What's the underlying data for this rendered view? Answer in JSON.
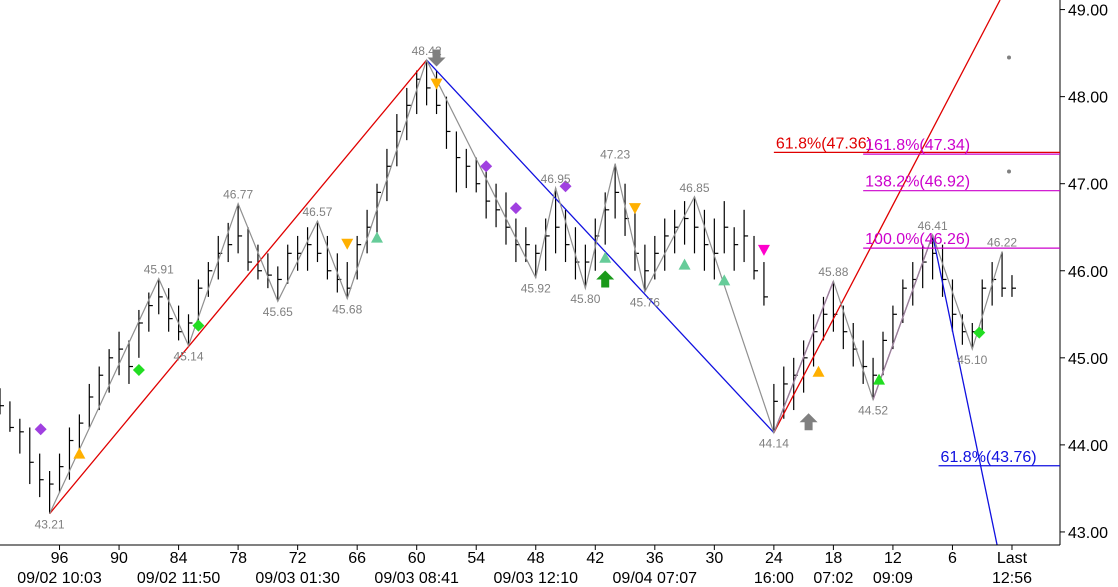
{
  "chart_data": {
    "type": "ohlc",
    "xlim": [
      102,
      -4.84
    ],
    "ylim": [
      42.85,
      49.11
    ],
    "xticks": [
      96,
      90,
      84,
      78,
      72,
      66,
      60,
      54,
      48,
      42,
      36,
      30,
      24,
      18,
      12,
      6,
      {
        "value": 0,
        "label": "Last"
      }
    ],
    "xticks2": [
      {
        "value": 96,
        "label": "09/02 10:03"
      },
      {
        "value": 84,
        "label": "09/02 11:50"
      },
      {
        "value": 72,
        "label": "09/03 01:30"
      },
      {
        "value": 60,
        "label": "09/03 08:41"
      },
      {
        "value": 48,
        "label": "09/03 12:10"
      },
      {
        "value": 36,
        "label": "09/04 07:07"
      },
      {
        "value": 24,
        "label": "16:00"
      },
      {
        "value": 18,
        "label": "07:02"
      },
      {
        "value": 12,
        "label": "09:09"
      },
      {
        "value": 0,
        "label": "12:56"
      }
    ],
    "yticks": [
      {
        "value": 43,
        "label": "43.00"
      },
      {
        "value": 44,
        "label": "44.00"
      },
      {
        "value": 45,
        "label": "45.00"
      },
      {
        "value": 46,
        "label": "46.00"
      },
      {
        "value": 47,
        "label": "47.00"
      },
      {
        "value": 48,
        "label": "48.00"
      },
      {
        "value": 49,
        "label": "49.00"
      }
    ],
    "bars": {
      "color": "#000000",
      "x": [
        102,
        101,
        100,
        99,
        98,
        97,
        96,
        95,
        94,
        93,
        92,
        91,
        90,
        89,
        88,
        87,
        86,
        85,
        84,
        83,
        82,
        81,
        80,
        79,
        78,
        77,
        76,
        75,
        74,
        73,
        72,
        71,
        70,
        69,
        68,
        67,
        66,
        65,
        64,
        63,
        62,
        61,
        60,
        59,
        58,
        57,
        56,
        55,
        54,
        53,
        52,
        51,
        50,
        49,
        48,
        47,
        46,
        45,
        44,
        43,
        42,
        41,
        40,
        39,
        38,
        37,
        36,
        35,
        34,
        33,
        32,
        31,
        30,
        29,
        28,
        27,
        26,
        25,
        24,
        23,
        22,
        21,
        20,
        19,
        18,
        17,
        16,
        15,
        14,
        13,
        12,
        11,
        10,
        9,
        8,
        7,
        6,
        5,
        4,
        3,
        2,
        1,
        0
      ],
      "high": [
        44.65,
        44.5,
        44.3,
        44.2,
        43.9,
        43.7,
        43.9,
        44.2,
        44.35,
        44.7,
        44.9,
        45.1,
        45.3,
        45.2,
        45.55,
        45.75,
        45.91,
        45.8,
        45.6,
        45.5,
        45.9,
        46.1,
        46.4,
        46.55,
        46.77,
        46.5,
        46.3,
        46.2,
        46.05,
        46.3,
        46.4,
        46.5,
        46.57,
        46.4,
        46.2,
        46.1,
        46.4,
        46.7,
        47.0,
        47.4,
        47.8,
        48.1,
        48.3,
        48.42,
        48.3,
        48.0,
        47.6,
        47.4,
        47.3,
        47.2,
        47.0,
        46.9,
        46.6,
        46.5,
        46.3,
        46.6,
        46.95,
        46.7,
        46.5,
        46.3,
        46.6,
        46.9,
        47.23,
        47.0,
        46.7,
        46.3,
        46.4,
        46.6,
        46.7,
        46.8,
        46.85,
        46.7,
        46.6,
        46.8,
        46.5,
        46.7,
        46.4,
        46.1,
        44.7,
        44.9,
        45.0,
        45.2,
        45.5,
        45.7,
        45.88,
        45.6,
        45.4,
        45.2,
        45.0,
        45.3,
        45.6,
        45.9,
        46.1,
        46.3,
        46.41,
        46.3,
        45.9,
        45.5,
        45.4,
        45.9,
        46.1,
        46.22,
        45.95
      ],
      "low": [
        44.35,
        44.15,
        43.9,
        43.55,
        43.4,
        43.21,
        43.45,
        43.6,
        43.9,
        44.2,
        44.4,
        44.6,
        44.8,
        44.7,
        45.0,
        45.3,
        45.5,
        45.3,
        45.2,
        45.14,
        45.4,
        45.7,
        45.9,
        46.1,
        46.2,
        46.0,
        45.9,
        45.8,
        45.65,
        45.85,
        46.0,
        46.0,
        46.1,
        45.9,
        45.75,
        45.68,
        45.9,
        46.2,
        46.4,
        46.8,
        47.2,
        47.5,
        47.8,
        47.9,
        47.8,
        47.4,
        46.9,
        46.95,
        46.9,
        46.6,
        46.5,
        46.3,
        46.1,
        46.1,
        45.92,
        46.0,
        46.2,
        46.1,
        45.9,
        45.8,
        46.0,
        46.3,
        46.6,
        46.4,
        46.0,
        45.76,
        45.9,
        46.0,
        46.2,
        46.3,
        46.2,
        46.0,
        45.9,
        46.2,
        46.0,
        46.1,
        45.9,
        45.6,
        44.14,
        44.3,
        44.4,
        44.6,
        44.9,
        45.2,
        45.3,
        45.1,
        44.9,
        44.7,
        44.52,
        44.8,
        45.1,
        45.4,
        45.6,
        45.8,
        45.9,
        45.7,
        45.3,
        45.15,
        45.1,
        45.3,
        45.6,
        45.7,
        45.7
      ],
      "close": [
        44.45,
        44.2,
        44.15,
        43.8,
        43.6,
        43.55,
        43.75,
        44.05,
        44.25,
        44.55,
        44.8,
        45.0,
        45.1,
        44.9,
        45.4,
        45.6,
        45.7,
        45.45,
        45.3,
        45.4,
        45.8,
        46.0,
        46.2,
        46.3,
        46.4,
        46.1,
        46.0,
        45.95,
        45.9,
        46.2,
        46.2,
        46.3,
        46.2,
        46.0,
        45.9,
        45.8,
        46.3,
        46.5,
        46.9,
        47.2,
        47.6,
        47.9,
        48.2,
        48.1,
        47.9,
        47.6,
        47.3,
        47.2,
        47.0,
        46.8,
        46.7,
        46.5,
        46.3,
        46.3,
        46.2,
        46.4,
        46.5,
        46.3,
        46.1,
        46.1,
        46.4,
        46.7,
        46.9,
        46.6,
        46.2,
        46.0,
        46.2,
        46.4,
        46.5,
        46.6,
        46.5,
        46.3,
        46.2,
        46.5,
        46.3,
        46.4,
        46.0,
        45.7,
        44.5,
        44.7,
        44.8,
        45.0,
        45.3,
        45.5,
        45.5,
        45.3,
        45.1,
        44.9,
        44.8,
        45.2,
        45.5,
        45.8,
        45.9,
        46.1,
        46.2,
        45.9,
        45.5,
        45.3,
        45.3,
        45.8,
        45.9,
        45.8,
        45.8
      ]
    },
    "zigzag": {
      "color": "#909090",
      "x": [
        97,
        86,
        83,
        78,
        74,
        70,
        67,
        59,
        48,
        46,
        43,
        40,
        37,
        32,
        24,
        18,
        14,
        8,
        4,
        1
      ],
      "y": [
        43.21,
        45.91,
        45.14,
        46.77,
        45.65,
        46.57,
        45.68,
        48.42,
        45.92,
        46.95,
        45.8,
        47.23,
        45.76,
        46.85,
        44.14,
        45.88,
        44.52,
        46.41,
        45.1,
        46.22
      ],
      "value_labels": [
        "43.21",
        "45.91",
        "45.14",
        "46.77",
        "45.65",
        "46.57",
        "45.68",
        "48.42",
        "45.92",
        "46.95",
        "45.80",
        "47.23",
        "45.76",
        "46.85",
        "44.14",
        "45.88",
        "44.52",
        "46.41",
        "45.10",
        "46.22"
      ]
    },
    "trendlines": [
      {
        "color": "#e00000",
        "x": [
          97,
          59
        ],
        "y": [
          43.21,
          48.42
        ]
      },
      {
        "color": "#1010e0",
        "x": [
          59,
          24
        ],
        "y": [
          48.42,
          44.14
        ]
      },
      {
        "color": "#cc00cc",
        "x": [
          24,
          18
        ],
        "y": [
          44.14,
          45.88
        ]
      },
      {
        "color": "#cc00cc",
        "x": [
          14,
          8
        ],
        "y": [
          44.52,
          46.41
        ]
      },
      {
        "color": "#e00000",
        "x": [
          24,
          1.2
        ],
        "y": [
          44.14,
          49.11
        ]
      },
      {
        "color": "#1010e0",
        "x": [
          8,
          1.5
        ],
        "y": [
          46.41,
          42.85
        ]
      }
    ],
    "levels": [
      {
        "label": "61.8%(47.36)",
        "value": 47.36,
        "from": 24,
        "color": "#e00000"
      },
      {
        "label": "161.8%(47.34)",
        "value": 47.34,
        "from": 15,
        "color": "#cc00cc"
      },
      {
        "label": "138.2%(46.92)",
        "value": 46.92,
        "from": 15,
        "color": "#cc00cc"
      },
      {
        "label": "100.0%(46.26)",
        "value": 46.26,
        "from": 15,
        "color": "#cc00cc"
      },
      {
        "label": "61.8%(43.76)",
        "value": 43.76,
        "from": 7.4,
        "color": "#1010e0"
      }
    ],
    "markers": [
      {
        "shape": "diamond",
        "color": "#a040e0",
        "x": 97.9,
        "y": 44.18
      },
      {
        "shape": "triangle-up",
        "color": "#ffb000",
        "x": 94,
        "y": 43.9
      },
      {
        "shape": "diamond",
        "color": "#22dd22",
        "x": 88,
        "y": 44.86
      },
      {
        "shape": "diamond",
        "color": "#22dd22",
        "x": 82,
        "y": 45.37
      },
      {
        "shape": "triangle-down",
        "color": "#ffb000",
        "x": 67,
        "y": 46.31
      },
      {
        "shape": "triangle-up",
        "color": "#66cc99",
        "x": 64,
        "y": 46.38
      },
      {
        "shape": "arrow-down",
        "color": "#808080",
        "x": 58,
        "y": 48.45
      },
      {
        "shape": "triangle-down",
        "color": "#ffb000",
        "x": 58,
        "y": 48.15
      },
      {
        "shape": "diamond",
        "color": "#a040e0",
        "x": 53,
        "y": 47.2
      },
      {
        "shape": "diamond",
        "color": "#a040e0",
        "x": 50,
        "y": 46.72
      },
      {
        "shape": "diamond",
        "color": "#a040e0",
        "x": 45,
        "y": 46.97
      },
      {
        "shape": "triangle-up",
        "color": "#66cc99",
        "x": 41,
        "y": 46.15
      },
      {
        "shape": "arrow-up",
        "color": "#1a9a1a",
        "x": 41,
        "y": 45.9
      },
      {
        "shape": "triangle-down",
        "color": "#ffb000",
        "x": 38,
        "y": 46.72
      },
      {
        "shape": "triangle-up",
        "color": "#66cc99",
        "x": 33,
        "y": 46.07
      },
      {
        "shape": "triangle-up",
        "color": "#66cc99",
        "x": 29,
        "y": 45.89
      },
      {
        "shape": "triangle-down",
        "color": "#ff00cc",
        "x": 25,
        "y": 46.24
      },
      {
        "shape": "arrow-up",
        "color": "#808080",
        "x": 20.5,
        "y": 44.26
      },
      {
        "shape": "triangle-up",
        "color": "#ffb000",
        "x": 19.5,
        "y": 44.84
      },
      {
        "shape": "triangle-up",
        "color": "#22dd22",
        "x": 13.4,
        "y": 44.75
      },
      {
        "shape": "diamond",
        "color": "#22dd22",
        "x": 3.3,
        "y": 45.29
      },
      {
        "shape": "dot",
        "color": "#808080",
        "x": 0.3,
        "y": 48.45
      },
      {
        "shape": "dot",
        "color": "#808080",
        "x": 0.3,
        "y": 47.14
      }
    ]
  }
}
